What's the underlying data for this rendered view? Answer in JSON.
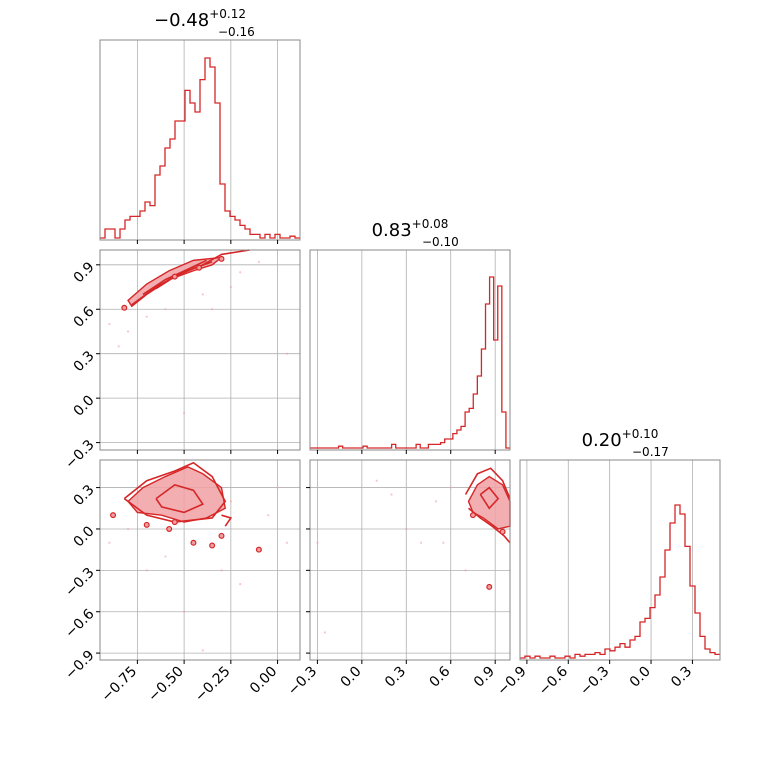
{
  "chart_data": {
    "type": "corner",
    "grid": true,
    "colors": {
      "line": "#d62728",
      "fill": "#f0a0a3",
      "grid": "#b0b0b0",
      "frame": "#888888"
    },
    "titles": [
      {
        "value": "0.48",
        "sign": "−",
        "plus": "+0.12",
        "minus": "−0.16"
      },
      {
        "value": "0.83",
        "sign": "",
        "plus": "+0.08",
        "minus": "−0.10"
      },
      {
        "value": "0.20",
        "sign": "",
        "plus": "+0.10",
        "minus": "−0.17"
      }
    ],
    "ranges": [
      [
        -0.95,
        0.12
      ],
      [
        -0.35,
        1.0
      ],
      [
        -0.95,
        0.5
      ]
    ],
    "ticks": [
      [
        {
          "v": -0.75,
          "label": "−0.75"
        },
        {
          "v": -0.5,
          "label": "−0.50"
        },
        {
          "v": -0.25,
          "label": "−0.25"
        },
        {
          "v": 0.0,
          "label": "0.00"
        }
      ],
      [
        {
          "v": -0.3,
          "label": "−0.3"
        },
        {
          "v": 0.0,
          "label": "0.0"
        },
        {
          "v": 0.3,
          "label": "0.3"
        },
        {
          "v": 0.6,
          "label": "0.6"
        },
        {
          "v": 0.9,
          "label": "0.9"
        }
      ],
      [
        {
          "v": -0.9,
          "label": "−0.9"
        },
        {
          "v": -0.6,
          "label": "−0.6"
        },
        {
          "v": -0.3,
          "label": "−0.3"
        },
        {
          "v": 0.0,
          "label": "0.0"
        },
        {
          "v": 0.3,
          "label": "0.3"
        }
      ]
    ],
    "histograms": [
      {
        "edges": [
          -0.95,
          0.12
        ],
        "max": 1.0,
        "values": [
          0.0,
          0.05,
          0.05,
          0.0,
          0.05,
          0.1,
          0.12,
          0.12,
          0.15,
          0.2,
          0.18,
          0.35,
          0.4,
          0.5,
          0.55,
          0.65,
          0.65,
          0.82,
          0.75,
          0.7,
          0.88,
          1.0,
          0.95,
          0.75,
          0.3,
          0.15,
          0.12,
          0.1,
          0.07,
          0.05,
          0.02,
          0.02,
          0.0,
          0.02,
          0.0,
          0.02,
          0.0,
          0.0,
          0.01,
          0.0
        ]
      },
      {
        "edges": [
          -0.35,
          1.0
        ],
        "max": 1.0,
        "values": [
          0.0,
          0.0,
          0.0,
          0.0,
          0.0,
          0.0,
          0.0,
          0.01,
          0.0,
          0.0,
          0.0,
          0.0,
          0.0,
          0.01,
          0.0,
          0.0,
          0.0,
          0.0,
          0.0,
          0.0,
          0.02,
          0.0,
          0.0,
          0.0,
          0.0,
          0.0,
          0.02,
          0.0,
          0.0,
          0.02,
          0.02,
          0.02,
          0.03,
          0.05,
          0.05,
          0.08,
          0.1,
          0.12,
          0.2,
          0.22,
          0.3,
          0.4,
          0.55,
          0.8,
          0.95,
          0.6,
          0.9,
          0.2,
          0.0
        ]
      },
      {
        "edges": [
          -0.95,
          0.5
        ],
        "max": 1.0,
        "values": [
          0.0,
          0.01,
          0.0,
          0.01,
          0.0,
          0.0,
          0.01,
          0.0,
          0.0,
          0.01,
          0.0,
          0.02,
          0.01,
          0.02,
          0.02,
          0.03,
          0.02,
          0.05,
          0.04,
          0.06,
          0.08,
          0.06,
          0.1,
          0.12,
          0.2,
          0.22,
          0.28,
          0.35,
          0.45,
          0.6,
          0.75,
          0.85,
          0.8,
          0.62,
          0.4,
          0.25,
          0.12,
          0.05,
          0.03,
          0.02
        ]
      }
    ],
    "pairs": [
      {
        "row": 1,
        "col": 0,
        "fill": [
          [
            -0.78,
            0.62
          ],
          [
            -0.7,
            0.7
          ],
          [
            -0.58,
            0.8
          ],
          [
            -0.45,
            0.86
          ],
          [
            -0.35,
            0.9
          ],
          [
            -0.3,
            0.95
          ],
          [
            -0.45,
            0.93
          ],
          [
            -0.58,
            0.86
          ],
          [
            -0.7,
            0.77
          ],
          [
            -0.8,
            0.66
          ]
        ],
        "lines": [
          [
            [
              -0.78,
              0.63
            ],
            [
              -0.65,
              0.75
            ],
            [
              -0.52,
              0.84
            ],
            [
              -0.4,
              0.9
            ],
            [
              -0.3,
              0.97
            ],
            [
              -0.15,
              1.0
            ]
          ],
          [
            [
              -0.72,
              0.7
            ],
            [
              -0.6,
              0.8
            ],
            [
              -0.48,
              0.87
            ],
            [
              -0.38,
              0.93
            ]
          ],
          [
            [
              -0.65,
              0.74
            ],
            [
              -0.55,
              0.82
            ],
            [
              -0.44,
              0.88
            ],
            [
              -0.35,
              0.92
            ]
          ]
        ],
        "dots": [
          [
            -0.82,
            0.61
          ],
          [
            -0.55,
            0.82
          ],
          [
            -0.42,
            0.88
          ],
          [
            -0.3,
            0.94
          ]
        ],
        "scatter": [
          [
            -0.9,
            0.5
          ],
          [
            -0.85,
            0.35
          ],
          [
            -0.6,
            0.6
          ],
          [
            -0.7,
            0.55
          ],
          [
            -0.4,
            0.7
          ],
          [
            -0.2,
            0.85
          ],
          [
            -0.1,
            0.92
          ],
          [
            0.05,
            0.3
          ],
          [
            -0.5,
            -0.1
          ],
          [
            -0.35,
            0.6
          ],
          [
            -0.25,
            0.75
          ],
          [
            -0.8,
            0.45
          ]
        ]
      },
      {
        "row": 2,
        "col": 0,
        "fill": [
          [
            -0.8,
            0.2
          ],
          [
            -0.72,
            0.3
          ],
          [
            -0.6,
            0.38
          ],
          [
            -0.48,
            0.45
          ],
          [
            -0.4,
            0.4
          ],
          [
            -0.3,
            0.3
          ],
          [
            -0.28,
            0.15
          ],
          [
            -0.38,
            0.08
          ],
          [
            -0.5,
            0.05
          ],
          [
            -0.62,
            0.1
          ],
          [
            -0.75,
            0.12
          ]
        ],
        "lines": [
          [
            [
              -0.82,
              0.22
            ],
            [
              -0.7,
              0.35
            ],
            [
              -0.55,
              0.42
            ],
            [
              -0.45,
              0.48
            ],
            [
              -0.35,
              0.38
            ],
            [
              -0.28,
              0.2
            ],
            [
              -0.35,
              0.08
            ],
            [
              -0.55,
              0.05
            ],
            [
              -0.7,
              0.1
            ],
            [
              -0.82,
              0.22
            ]
          ],
          [
            [
              -0.65,
              0.22
            ],
            [
              -0.55,
              0.32
            ],
            [
              -0.45,
              0.28
            ],
            [
              -0.4,
              0.18
            ],
            [
              -0.5,
              0.12
            ],
            [
              -0.62,
              0.16
            ],
            [
              -0.65,
              0.22
            ]
          ],
          [
            [
              -0.3,
              0.1
            ],
            [
              -0.25,
              0.08
            ],
            [
              -0.28,
              0.02
            ]
          ]
        ],
        "dots": [
          [
            -0.88,
            0.1
          ],
          [
            -0.7,
            0.03
          ],
          [
            -0.58,
            0.0
          ],
          [
            -0.45,
            -0.1
          ],
          [
            -0.35,
            -0.12
          ],
          [
            -0.3,
            -0.05
          ],
          [
            -0.1,
            -0.15
          ],
          [
            -0.55,
            0.05
          ]
        ],
        "scatter": [
          [
            -0.9,
            -0.1
          ],
          [
            -0.7,
            -0.3
          ],
          [
            -0.6,
            -0.2
          ],
          [
            -0.3,
            -0.3
          ],
          [
            -0.2,
            -0.4
          ],
          [
            -0.05,
            0.1
          ],
          [
            0.0,
            0.3
          ],
          [
            -0.4,
            -0.88
          ],
          [
            -0.5,
            -0.6
          ],
          [
            -0.8,
            0.0
          ],
          [
            0.05,
            -0.1
          ],
          [
            -0.25,
            0.2
          ]
        ]
      },
      {
        "row": 2,
        "col": 1,
        "fill": [
          [
            0.72,
            0.2
          ],
          [
            0.78,
            0.32
          ],
          [
            0.86,
            0.38
          ],
          [
            0.95,
            0.32
          ],
          [
            1.0,
            0.2
          ],
          [
            1.0,
            0.02
          ],
          [
            0.92,
            0.0
          ],
          [
            0.82,
            0.08
          ],
          [
            0.75,
            0.12
          ]
        ],
        "lines": [
          [
            [
              0.7,
              0.25
            ],
            [
              0.78,
              0.4
            ],
            [
              0.87,
              0.44
            ],
            [
              0.95,
              0.35
            ],
            [
              1.0,
              0.22
            ]
          ],
          [
            [
              0.72,
              0.15
            ],
            [
              0.8,
              0.08
            ],
            [
              0.88,
              0.02
            ],
            [
              0.96,
              -0.05
            ],
            [
              1.0,
              -0.1
            ]
          ],
          [
            [
              0.8,
              0.25
            ],
            [
              0.86,
              0.3
            ],
            [
              0.92,
              0.22
            ],
            [
              0.86,
              0.15
            ],
            [
              0.8,
              0.25
            ]
          ]
        ],
        "dots": [
          [
            0.86,
            -0.42
          ],
          [
            0.75,
            0.1
          ],
          [
            0.95,
            -0.02
          ]
        ],
        "scatter": [
          [
            0.5,
            0.2
          ],
          [
            0.4,
            -0.1
          ],
          [
            0.6,
            0.3
          ],
          [
            0.2,
            0.25
          ],
          [
            -0.3,
            -0.1
          ],
          [
            0.1,
            0.35
          ],
          [
            0.7,
            -0.3
          ],
          [
            0.3,
            0.0
          ],
          [
            0.55,
            -0.1
          ],
          [
            -0.25,
            -0.75
          ]
        ]
      }
    ]
  }
}
